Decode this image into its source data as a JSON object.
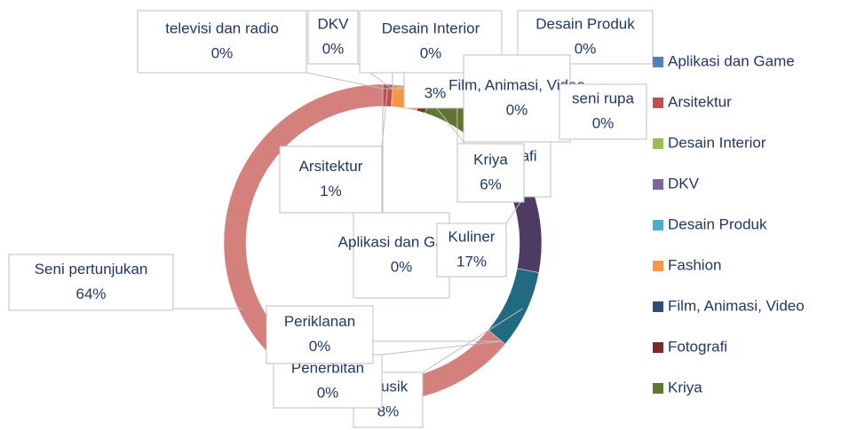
{
  "chart_data": {
    "type": "donut",
    "categories": [
      "Aplikasi dan Game",
      "Arsitektur",
      "Desain Interior",
      "DKV",
      "Desain Produk",
      "Fashion",
      "Film, Animasi, Video",
      "Fotografi",
      "Kriya",
      "Kuliner",
      "Musik",
      "Penerbitan",
      "Periklanan",
      "Seni pertunjukan",
      "seni rupa",
      "televisi dan radio"
    ],
    "values": [
      0,
      1,
      0,
      0,
      0,
      3,
      0,
      1,
      6,
      17,
      8,
      0,
      0,
      64,
      0,
      0
    ],
    "value_labels": [
      "0%",
      "1%",
      "0%",
      "0%",
      "0%",
      "3%",
      "0%",
      "1%",
      "6%",
      "17%",
      "8%",
      "0%",
      "0%",
      "64%",
      "0%",
      "0%"
    ],
    "colors": [
      "#4f81bd",
      "#c0504d",
      "#9bbb59",
      "#8064a2",
      "#4bacc6",
      "#f79646",
      "#2c4d75",
      "#772c2a",
      "#5f7530",
      "#4d3b62",
      "#216a80",
      "#b65708",
      "#729aca",
      "#d4807d",
      "#a5c26a",
      "#9b85b8"
    ],
    "legend": "right"
  }
}
